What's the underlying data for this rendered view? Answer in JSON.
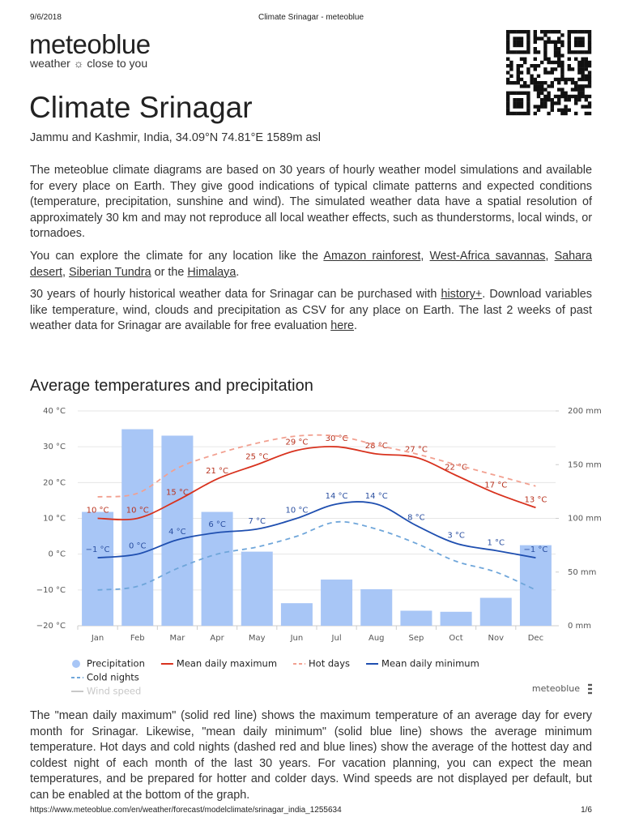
{
  "header": {
    "date": "9/6/2018",
    "page_title": "Climate Srinagar - meteoblue"
  },
  "logo": {
    "name": "meteoblue",
    "tagline": "weather ☼ close to you"
  },
  "title": "Climate Srinagar",
  "subtitle": "Jammu and Kashmir, India, 34.09°N 74.81°E 1589m asl",
  "paragraphs": [
    [
      {
        "text": "The meteoblue climate diagrams are based on 30 years of hourly weather model simulations and available for every place on Earth. They give good indications of typical climate patterns and expected conditions (temperature, precipitation, sunshine and wind). The simulated weather data have a spatial resolution of approximately 30 km and may not reproduce all local weather effects, such as thunderstorms, local winds, or tornadoes."
      }
    ],
    [
      {
        "text": "You can explore the climate for any location like the "
      },
      {
        "link": "Amazon rainforest"
      },
      {
        "text": ", "
      },
      {
        "link": "West-Africa savannas"
      },
      {
        "text": ", "
      },
      {
        "link": "Sahara desert"
      },
      {
        "text": ", "
      },
      {
        "link": "Siberian Tundra"
      },
      {
        "text": " or the "
      },
      {
        "link": "Himalaya"
      },
      {
        "text": "."
      }
    ],
    [
      {
        "text": "30 years of hourly historical weather data for Srinagar can be purchased with "
      },
      {
        "link": "history+"
      },
      {
        "text": ". Download variables like temperature, wind, clouds and precipitation as CSV for any place on Earth. The last 2 weeks of past weather data for Srinagar are available for free evaluation "
      },
      {
        "link": "here"
      },
      {
        "text": "."
      }
    ]
  ],
  "chart_heading": "Average temperatures and precipitation",
  "chart_data": {
    "type": "bar",
    "categories": [
      "Jan",
      "Feb",
      "Mar",
      "Apr",
      "May",
      "Jun",
      "Jul",
      "Aug",
      "Sep",
      "Oct",
      "Nov",
      "Dec"
    ],
    "ylim": [
      -20,
      40
    ],
    "yticks": [
      {
        "value": 40,
        "label": "40 °C"
      },
      {
        "value": 30,
        "label": "30 °C"
      },
      {
        "value": 20,
        "label": "20 °C"
      },
      {
        "value": 10,
        "label": "10 °C"
      },
      {
        "value": 0,
        "label": "0 °C"
      },
      {
        "value": -10,
        "label": "−10 °C"
      },
      {
        "value": -20,
        "label": "−20 °C"
      }
    ],
    "y2lim": [
      0,
      200
    ],
    "y2ticks": [
      {
        "value": 200,
        "label": "200 mm"
      },
      {
        "value": 150,
        "label": "150 mm"
      },
      {
        "value": 100,
        "label": "100 mm"
      },
      {
        "value": 50,
        "label": "50 mm"
      },
      {
        "value": 0,
        "label": "0 mm"
      }
    ],
    "grid": true,
    "series": [
      {
        "name": "Precipitation",
        "type": "bar",
        "axis": "y2",
        "color": "#a8c6f6",
        "values": [
          106,
          183,
          177,
          106,
          69,
          21,
          43,
          34,
          14,
          13,
          26,
          75
        ]
      },
      {
        "name": "Mean daily maximum",
        "type": "line",
        "color": "#d8321e",
        "label_color": "#b8321e",
        "values": [
          10,
          10,
          15,
          21,
          25,
          29,
          30,
          28,
          27,
          22,
          17,
          13
        ],
        "value_labels": [
          "10 °C",
          "10 °C",
          "15 °C",
          "21 °C",
          "25 °C",
          "29 °C",
          "30 °C",
          "28 °C",
          "27 °C",
          "22 °C",
          "17 °C",
          "13 °C"
        ]
      },
      {
        "name": "Hot days",
        "type": "line",
        "dashed": true,
        "color": "#f2a090",
        "values": [
          16,
          17,
          24,
          28,
          31,
          33,
          33,
          30.5,
          28,
          25,
          22,
          19
        ]
      },
      {
        "name": "Mean daily minimum",
        "type": "line",
        "color": "#1f4fb0",
        "label_color": "#2a4fa0",
        "values": [
          -1,
          0,
          4,
          6,
          7,
          10,
          14,
          14,
          8,
          3,
          1,
          -1
        ],
        "value_labels": [
          "−1 °C",
          "0 °C",
          "4 °C",
          "6 °C",
          "7 °C",
          "10 °C",
          "14 °C",
          "14 °C",
          "8 °C",
          "3 °C",
          "1 °C",
          "−1 °C"
        ]
      },
      {
        "name": "Cold nights",
        "type": "line",
        "dashed": true,
        "color": "#6fa6da",
        "values": [
          -10,
          -9,
          -4,
          0,
          2,
          5,
          9,
          7,
          3,
          -2,
          -5,
          -10
        ]
      }
    ],
    "legend_disabled": [
      {
        "name": "Wind speed",
        "color": "#c8c8c8"
      }
    ],
    "credit": "meteoblue"
  },
  "explanation": "The \"mean daily maximum\" (solid red line) shows the maximum temperature of an average day for every month for Srinagar. Likewise, \"mean daily minimum\" (solid blue line) shows the average minimum temperature. Hot days and cold nights (dashed red and blue lines) show the average of the hottest day and coldest night of each month of the last 30 years. For vacation planning, you can expect the mean temperatures, and be prepared for hotter and colder days. Wind speeds are not displayed per default, but can be enabled at the bottom of the graph.",
  "footer": {
    "url": "https://www.meteoblue.com/en/weather/forecast/modelclimate/srinagar_india_1255634",
    "page": "1/6"
  }
}
